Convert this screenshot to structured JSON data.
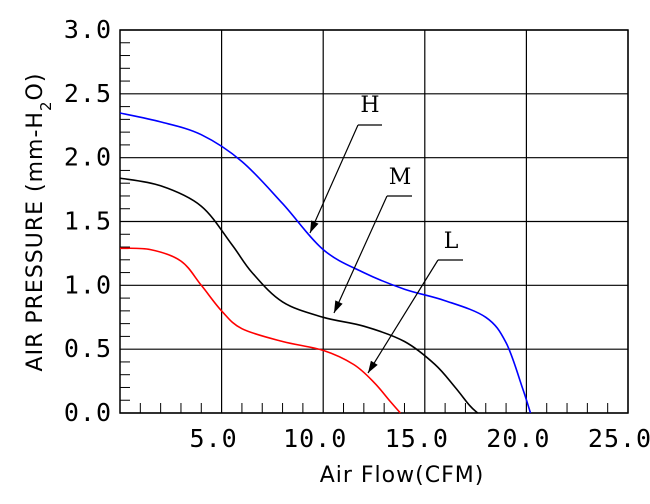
{
  "chart_data": {
    "type": "line",
    "xlabel": "Air Flow(CFM)",
    "ylabel": "AIR PRESSURE (mm-H",
    "ylabel_sub": "2",
    "ylabel_tail": "O)",
    "xlim": [
      0,
      25
    ],
    "ylim": [
      0,
      3
    ],
    "x_ticks": [
      5,
      10,
      15,
      20,
      25
    ],
    "x_tick_labels": [
      "5.0",
      "10.0",
      "15.0",
      "20.0",
      "25.0"
    ],
    "y_ticks": [
      0,
      0.5,
      1,
      1.5,
      2,
      2.5,
      3
    ],
    "y_tick_labels": [
      "0.0",
      "0.5",
      "1.0",
      "1.5",
      "2.0",
      "2.5",
      "3.0"
    ],
    "grid": true,
    "series": [
      {
        "name": "H",
        "color": "#0000ff",
        "x": [
          0,
          2,
          4,
          6,
          8,
          10,
          12,
          14,
          16,
          18,
          19,
          19.8,
          20.2
        ],
        "y": [
          2.35,
          2.28,
          2.18,
          1.97,
          1.64,
          1.28,
          1.1,
          0.97,
          0.88,
          0.75,
          0.55,
          0.2,
          0.0
        ]
      },
      {
        "name": "M",
        "color": "#000000",
        "x": [
          0,
          2,
          4,
          5.5,
          6.5,
          8,
          10,
          12,
          14,
          15.5,
          16.5,
          17.2,
          17.6
        ],
        "y": [
          1.84,
          1.78,
          1.62,
          1.32,
          1.1,
          0.87,
          0.75,
          0.68,
          0.56,
          0.38,
          0.2,
          0.06,
          0.0
        ]
      },
      {
        "name": "L",
        "color": "#ff0000",
        "x": [
          0,
          1.5,
          3,
          4,
          5,
          6,
          8,
          10,
          11.5,
          12.5,
          13.3,
          13.8
        ],
        "y": [
          1.29,
          1.28,
          1.19,
          1.0,
          0.8,
          0.66,
          0.56,
          0.49,
          0.38,
          0.24,
          0.09,
          0.0
        ]
      }
    ]
  }
}
